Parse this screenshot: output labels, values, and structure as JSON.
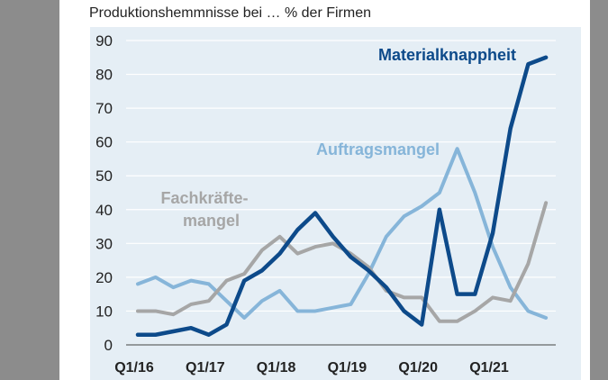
{
  "chart_data": {
    "type": "line",
    "title": "Produktionshemmnisse bei … % der Firmen",
    "xlabel": "",
    "ylabel": "",
    "ylim": [
      0,
      90
    ],
    "yticks": [
      "0",
      "10",
      "20",
      "30",
      "40",
      "50",
      "60",
      "70",
      "80",
      "90"
    ],
    "x": [
      "Q1/16",
      "Q2/16",
      "Q3/16",
      "Q4/16",
      "Q1/17",
      "Q2/17",
      "Q3/17",
      "Q4/17",
      "Q1/18",
      "Q2/18",
      "Q3/18",
      "Q4/18",
      "Q1/19",
      "Q2/19",
      "Q3/19",
      "Q4/19",
      "Q1/20",
      "Q2/20",
      "Q3/20",
      "Q4/20",
      "Q1/21",
      "Q2/21",
      "Q3/21",
      "Q4/21"
    ],
    "xtick_labels": [
      "Q1/16",
      "Q1/17",
      "Q1/18",
      "Q1/19",
      "Q1/20",
      "Q1/21"
    ],
    "grid": true,
    "series": [
      {
        "name": "Materialknappheit",
        "color": "#0d4a8a",
        "values": [
          3,
          3,
          4,
          5,
          3,
          6,
          19,
          22,
          27,
          34,
          39,
          32,
          26,
          22,
          17,
          10,
          6,
          40,
          15,
          15,
          33,
          64,
          83,
          85
        ]
      },
      {
        "name": "Auftragsmangel",
        "color": "#86b5d9",
        "values": [
          18,
          20,
          17,
          19,
          18,
          13,
          8,
          13,
          16,
          10,
          10,
          11,
          12,
          21,
          32,
          38,
          41,
          45,
          58,
          45,
          29,
          17,
          10,
          8
        ]
      },
      {
        "name": "Fachkräfte-mangel",
        "label_lines": [
          "Fachkräfte-",
          "mangel"
        ],
        "color": "#a6a6a6",
        "values": [
          10,
          10,
          9,
          12,
          13,
          19,
          21,
          28,
          32,
          27,
          29,
          30,
          27,
          23,
          16,
          14,
          14,
          7,
          7,
          10,
          14,
          13,
          24,
          42
        ]
      }
    ]
  }
}
